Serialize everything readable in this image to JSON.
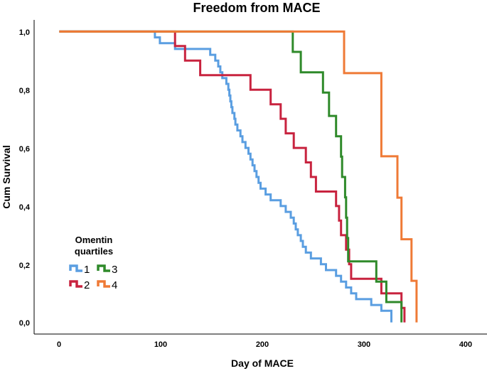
{
  "chart_data": {
    "type": "line",
    "subtype": "kaplan-meier step",
    "title": "Freedom from MACE",
    "xlabel": "Day of MACE",
    "ylabel": "Cum Survival",
    "xlim": [
      -25,
      425
    ],
    "ylim": [
      -0.04,
      1.04
    ],
    "xticks": [
      0,
      100,
      200,
      300,
      400
    ],
    "xtick_labels": [
      "0",
      "100",
      "200",
      "300",
      "400"
    ],
    "yticks": [
      0.0,
      0.2,
      0.4,
      0.6,
      0.8,
      1.0
    ],
    "ytick_labels": [
      "0,0",
      "0,2",
      "0,4",
      "0,6",
      "0,8",
      "1,0"
    ],
    "legend": {
      "title_line1": "Omentin",
      "title_line2": "quartiles",
      "placement": "bottom-left",
      "labels": [
        "1",
        "2",
        "3",
        "4"
      ]
    },
    "series": [
      {
        "name": "1",
        "color": "#5a9ee1",
        "points": [
          [
            0,
            1.0
          ],
          [
            95,
            0.98
          ],
          [
            100,
            0.96
          ],
          [
            115,
            0.94
          ],
          [
            150,
            0.92
          ],
          [
            155,
            0.9
          ],
          [
            158,
            0.88
          ],
          [
            160,
            0.86
          ],
          [
            162,
            0.84
          ],
          [
            166,
            0.82
          ],
          [
            168,
            0.8
          ],
          [
            169,
            0.78
          ],
          [
            170,
            0.76
          ],
          [
            171,
            0.74
          ],
          [
            172,
            0.72
          ],
          [
            174,
            0.7
          ],
          [
            175,
            0.68
          ],
          [
            177,
            0.66
          ],
          [
            180,
            0.64
          ],
          [
            182,
            0.62
          ],
          [
            185,
            0.6
          ],
          [
            188,
            0.58
          ],
          [
            190,
            0.56
          ],
          [
            192,
            0.54
          ],
          [
            194,
            0.52
          ],
          [
            196,
            0.5
          ],
          [
            198,
            0.48
          ],
          [
            200,
            0.46
          ],
          [
            205,
            0.44
          ],
          [
            210,
            0.42
          ],
          [
            220,
            0.4
          ],
          [
            225,
            0.38
          ],
          [
            230,
            0.36
          ],
          [
            233,
            0.34
          ],
          [
            235,
            0.32
          ],
          [
            237,
            0.3
          ],
          [
            240,
            0.28
          ],
          [
            242,
            0.26
          ],
          [
            245,
            0.24
          ],
          [
            250,
            0.22
          ],
          [
            260,
            0.2
          ],
          [
            265,
            0.18
          ],
          [
            275,
            0.16
          ],
          [
            280,
            0.14
          ],
          [
            285,
            0.12
          ],
          [
            290,
            0.1
          ],
          [
            295,
            0.08
          ],
          [
            310,
            0.06
          ],
          [
            320,
            0.04
          ],
          [
            330,
            0.0
          ]
        ]
      },
      {
        "name": "2",
        "color": "#c8233f",
        "points": [
          [
            0,
            1.0
          ],
          [
            115,
            0.95
          ],
          [
            125,
            0.9
          ],
          [
            140,
            0.85
          ],
          [
            190,
            0.8
          ],
          [
            210,
            0.75
          ],
          [
            220,
            0.7
          ],
          [
            225,
            0.65
          ],
          [
            233,
            0.6
          ],
          [
            245,
            0.55
          ],
          [
            250,
            0.5
          ],
          [
            255,
            0.45
          ],
          [
            275,
            0.4
          ],
          [
            278,
            0.35
          ],
          [
            280,
            0.3
          ],
          [
            285,
            0.25
          ],
          [
            288,
            0.2
          ],
          [
            290,
            0.15
          ],
          [
            320,
            0.1
          ],
          [
            340,
            0.05
          ],
          [
            343,
            0.0
          ]
        ]
      },
      {
        "name": "3",
        "color": "#2f8a2a",
        "points": [
          [
            0,
            1.0
          ],
          [
            232,
            0.93
          ],
          [
            240,
            0.86
          ],
          [
            262,
            0.79
          ],
          [
            268,
            0.71
          ],
          [
            275,
            0.64
          ],
          [
            280,
            0.57
          ],
          [
            281,
            0.5
          ],
          [
            284,
            0.43
          ],
          [
            285,
            0.36
          ],
          [
            286,
            0.29
          ],
          [
            287,
            0.21
          ],
          [
            315,
            0.14
          ],
          [
            325,
            0.07
          ],
          [
            340,
            0.0
          ]
        ]
      },
      {
        "name": "4",
        "color": "#ef7a36",
        "points": [
          [
            0,
            1.0
          ],
          [
            283,
            0.857
          ],
          [
            320,
            0.571
          ],
          [
            336,
            0.429
          ],
          [
            340,
            0.286
          ],
          [
            350,
            0.143
          ],
          [
            355,
            0.0
          ]
        ]
      }
    ]
  }
}
